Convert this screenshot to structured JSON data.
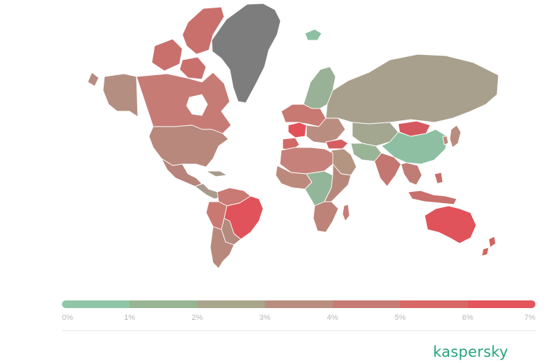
{
  "map": {
    "title": "",
    "scale": {
      "min_percent": 0,
      "max_percent": 7,
      "colors": [
        "#8fc6a8",
        "#98b494",
        "#a8a58d",
        "#b98e80",
        "#c67b74",
        "#d76865",
        "#e3545b"
      ],
      "tick_labels": [
        "0%",
        "1%",
        "2%",
        "3%",
        "4%",
        "5%",
        "6%",
        "7%"
      ]
    },
    "no_data_color": "#7d7d7d",
    "regions": [
      {
        "name": "Greenland",
        "color": "#7d7d7d"
      },
      {
        "name": "Canada",
        "color": "#c77b75"
      },
      {
        "name": "Arctic Islands",
        "color": "#c9706d"
      },
      {
        "name": "Alaska",
        "color": "#b58e82"
      },
      {
        "name": "USA",
        "color": "#b8887d"
      },
      {
        "name": "Mexico",
        "color": "#b7847b"
      },
      {
        "name": "Central America",
        "color": "#a99b8c"
      },
      {
        "name": "Colombia / Venezuela",
        "color": "#c97a74"
      },
      {
        "name": "Peru / Ecuador",
        "color": "#ca7972"
      },
      {
        "name": "Brazil",
        "color": "#e0535a"
      },
      {
        "name": "Bolivia / Paraguay",
        "color": "#b48a7e"
      },
      {
        "name": "Argentina / Chile",
        "color": "#b9887d"
      },
      {
        "name": "Iceland",
        "color": "#8fbfa2"
      },
      {
        "name": "Scandinavia",
        "color": "#99b196"
      },
      {
        "name": "Western Europe",
        "color": "#c77972"
      },
      {
        "name": "France",
        "color": "#e35058"
      },
      {
        "name": "Iberia",
        "color": "#d06a67"
      },
      {
        "name": "Eastern Europe",
        "color": "#b98e81"
      },
      {
        "name": "Russia",
        "color": "#a8a08d"
      },
      {
        "name": "Turkey",
        "color": "#d65e61"
      },
      {
        "name": "Central Asia",
        "color": "#a3a790"
      },
      {
        "name": "Mongolia",
        "color": "#d4595e"
      },
      {
        "name": "China",
        "color": "#8fbfa2"
      },
      {
        "name": "Middle East",
        "color": "#b49582"
      },
      {
        "name": "Iran",
        "color": "#9ab496"
      },
      {
        "name": "India",
        "color": "#c47670"
      },
      {
        "name": "Southeast Asia",
        "color": "#c07d75"
      },
      {
        "name": "Japan",
        "color": "#b98c80"
      },
      {
        "name": "Indonesia",
        "color": "#c8706d"
      },
      {
        "name": "Australia",
        "color": "#e0535a"
      },
      {
        "name": "New Zealand",
        "color": "#d4645f"
      },
      {
        "name": "North Africa",
        "color": "#c6827a"
      },
      {
        "name": "West Africa",
        "color": "#bc8a7d"
      },
      {
        "name": "Central Africa",
        "color": "#93b69b"
      },
      {
        "name": "East Africa",
        "color": "#b8877c"
      },
      {
        "name": "Southern Africa",
        "color": "#bd8379"
      },
      {
        "name": "Madagascar",
        "color": "#c57d76"
      }
    ]
  },
  "brand": {
    "name": "kaspersky",
    "color": "#26a37d"
  }
}
